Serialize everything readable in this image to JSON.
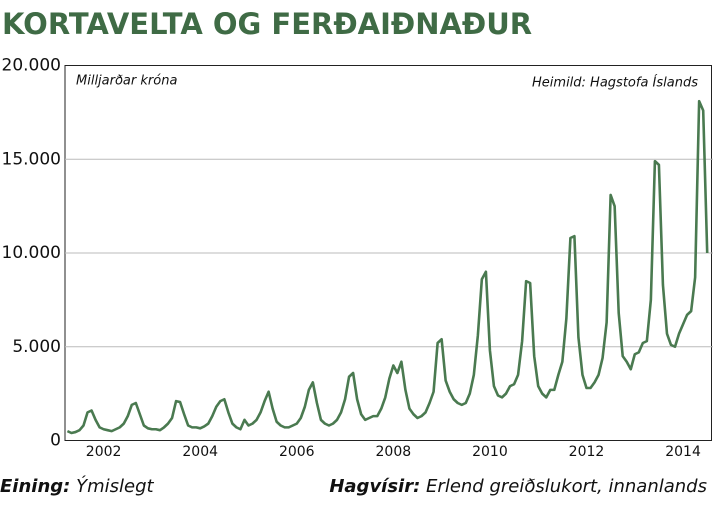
{
  "chart_data": {
    "type": "line",
    "title": "KORTAVELTA OG FERÐAIÐNAÐUR",
    "unit_note": "Milljarðar króna",
    "source": "Heimild: Hagstofa Íslands",
    "footer": {
      "left_label": "Eining:",
      "left_value": "Ýmislegt",
      "right_label": "Hagvísir:",
      "right_value": "Erlend greiðslukort, innanlands"
    },
    "color": "#4a7a50",
    "grid": true,
    "xlim": [
      2001.2,
      2014.62
    ],
    "xticks": [
      2002,
      2004,
      2006,
      2008,
      2010,
      2012,
      2014
    ],
    "ylim": [
      0,
      20000
    ],
    "yticks": [
      0,
      {
        "value": 5000,
        "label": "5.000"
      },
      {
        "value": 10000,
        "label": "10.000"
      },
      {
        "value": 15000,
        "label": "15.000"
      },
      {
        "value": 20000,
        "label": "20.000"
      }
    ],
    "x": [
      2001.25,
      2001.333,
      2001.417,
      2001.5,
      2001.583,
      2001.667,
      2001.75,
      2001.833,
      2001.917,
      2002,
      2002.083,
      2002.167,
      2002.25,
      2002.333,
      2002.417,
      2002.5,
      2002.583,
      2002.667,
      2002.75,
      2002.833,
      2002.917,
      2003,
      2003.083,
      2003.167,
      2003.25,
      2003.333,
      2003.417,
      2003.5,
      2003.583,
      2003.667,
      2003.75,
      2003.833,
      2003.917,
      2004,
      2004.083,
      2004.167,
      2004.25,
      2004.333,
      2004.417,
      2004.5,
      2004.583,
      2004.667,
      2004.75,
      2004.833,
      2004.917,
      2005,
      2005.083,
      2005.167,
      2005.25,
      2005.333,
      2005.417,
      2005.5,
      2005.583,
      2005.667,
      2005.75,
      2005.833,
      2005.917,
      2006,
      2006.083,
      2006.167,
      2006.25,
      2006.333,
      2006.417,
      2006.5,
      2006.583,
      2006.667,
      2006.75,
      2006.833,
      2006.917,
      2007,
      2007.083,
      2007.167,
      2007.25,
      2007.333,
      2007.417,
      2007.5,
      2007.583,
      2007.667,
      2007.75,
      2007.833,
      2007.917,
      2008,
      2008.083,
      2008.167,
      2008.25,
      2008.333,
      2008.417,
      2008.5,
      2008.583,
      2008.667,
      2008.75,
      2008.833,
      2008.917,
      2009,
      2009.083,
      2009.167,
      2009.25,
      2009.333,
      2009.417,
      2009.5,
      2009.583,
      2009.667,
      2009.75,
      2009.833,
      2009.917,
      2010,
      2010.083,
      2010.167,
      2010.25,
      2010.333,
      2010.417,
      2010.5,
      2010.583,
      2010.667,
      2010.75,
      2010.833,
      2010.917,
      2011,
      2011.083,
      2011.167,
      2011.25,
      2011.333,
      2011.417,
      2011.5,
      2011.583,
      2011.667,
      2011.75,
      2011.833,
      2011.917,
      2012,
      2012.083,
      2012.167,
      2012.25,
      2012.333,
      2012.417,
      2012.5,
      2012.583,
      2012.667,
      2012.75,
      2012.833,
      2012.917,
      2013,
      2013.083,
      2013.167,
      2013.25,
      2013.333,
      2013.417,
      2013.5,
      2013.583,
      2013.667,
      2013.75,
      2013.833,
      2013.917,
      2014,
      2014.083,
      2014.167,
      2014.25,
      2014.333,
      2014.417,
      2014.5
    ],
    "values": [
      500,
      400,
      450,
      550,
      800,
      1500,
      1600,
      1100,
      700,
      600,
      550,
      500,
      600,
      700,
      900,
      1300,
      1900,
      2000,
      1400,
      800,
      650,
      600,
      600,
      550,
      700,
      900,
      1200,
      2100,
      2050,
      1400,
      800,
      700,
      700,
      650,
      750,
      900,
      1300,
      1800,
      2100,
      2200,
      1500,
      900,
      700,
      600,
      1100,
      800,
      900,
      1100,
      1500,
      2100,
      2600,
      1700,
      1000,
      800,
      700,
      700,
      800,
      900,
      1200,
      1800,
      2700,
      3100,
      2000,
      1100,
      900,
      800,
      900,
      1100,
      1500,
      2200,
      3400,
      3600,
      2200,
      1400,
      1100,
      1200,
      1300,
      1300,
      1700,
      2300,
      3300,
      4000,
      3600,
      4200,
      2700,
      1700,
      1400,
      1200,
      1300,
      1500,
      2000,
      2600,
      5200,
      5400,
      3200,
      2600,
      2200,
      2000,
      1900,
      2000,
      2500,
      3500,
      5600,
      8600,
      9000,
      4800,
      2900,
      2400,
      2300,
      2500,
      2900,
      3000,
      3500,
      5300,
      8500,
      8400,
      4500,
      2900,
      2500,
      2300,
      2700,
      2700,
      3500,
      4200,
      6500,
      10800,
      10900,
      5500,
      3500,
      2800,
      2800,
      3100,
      3500,
      4400,
      6300,
      13100,
      12500,
      6800,
      4500,
      4200,
      3800,
      4600,
      4700,
      5200,
      5300,
      7500,
      14900,
      14700,
      8300,
      5700,
      5100,
      5000,
      5700,
      6200,
      6700,
      6900,
      8700,
      18100,
      17600,
      10000
    ]
  }
}
